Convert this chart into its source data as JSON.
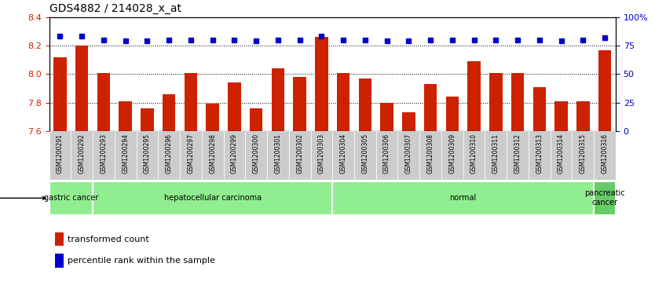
{
  "title": "GDS4882 / 214028_x_at",
  "samples": [
    "GSM1200291",
    "GSM1200292",
    "GSM1200293",
    "GSM1200294",
    "GSM1200295",
    "GSM1200296",
    "GSM1200297",
    "GSM1200298",
    "GSM1200299",
    "GSM1200300",
    "GSM1200301",
    "GSM1200302",
    "GSM1200303",
    "GSM1200304",
    "GSM1200305",
    "GSM1200306",
    "GSM1200307",
    "GSM1200308",
    "GSM1200309",
    "GSM1200310",
    "GSM1200311",
    "GSM1200312",
    "GSM1200313",
    "GSM1200314",
    "GSM1200315",
    "GSM1200316"
  ],
  "bar_values": [
    8.12,
    8.2,
    8.01,
    7.81,
    7.76,
    7.86,
    8.01,
    7.79,
    7.94,
    7.76,
    8.04,
    7.98,
    8.26,
    8.01,
    7.97,
    7.8,
    7.73,
    7.93,
    7.84,
    8.09,
    8.01,
    8.01,
    7.91,
    7.81,
    7.81,
    8.17
  ],
  "percentile_values": [
    83,
    83,
    80,
    79,
    79,
    80,
    80,
    80,
    80,
    79,
    80,
    80,
    83,
    80,
    80,
    79,
    79,
    80,
    80,
    80,
    80,
    80,
    80,
    79,
    80,
    82
  ],
  "ylim_left": [
    7.6,
    8.4
  ],
  "ylim_right": [
    0,
    100
  ],
  "bar_color": "#cc2200",
  "dot_color": "#0000cc",
  "plot_bg_color": "#ffffff",
  "group_configs": [
    {
      "label": "gastric cancer",
      "start": 0,
      "end": 2,
      "color": "#90ee90"
    },
    {
      "label": "hepatocellular carcinoma",
      "start": 2,
      "end": 13,
      "color": "#90ee90"
    },
    {
      "label": "normal",
      "start": 13,
      "end": 25,
      "color": "#90ee90"
    },
    {
      "label": "pancreatic\ncancer",
      "start": 25,
      "end": 26,
      "color": "#66cc66"
    }
  ],
  "legend_labels": [
    "transformed count",
    "percentile rank within the sample"
  ],
  "legend_colors": [
    "#cc2200",
    "#0000cc"
  ],
  "title_fontsize": 10,
  "ytick_left": [
    7.6,
    7.8,
    8.0,
    8.2,
    8.4
  ],
  "ytick_right": [
    0,
    25,
    50,
    75,
    100
  ],
  "gridlines": [
    7.8,
    8.0,
    8.2
  ]
}
